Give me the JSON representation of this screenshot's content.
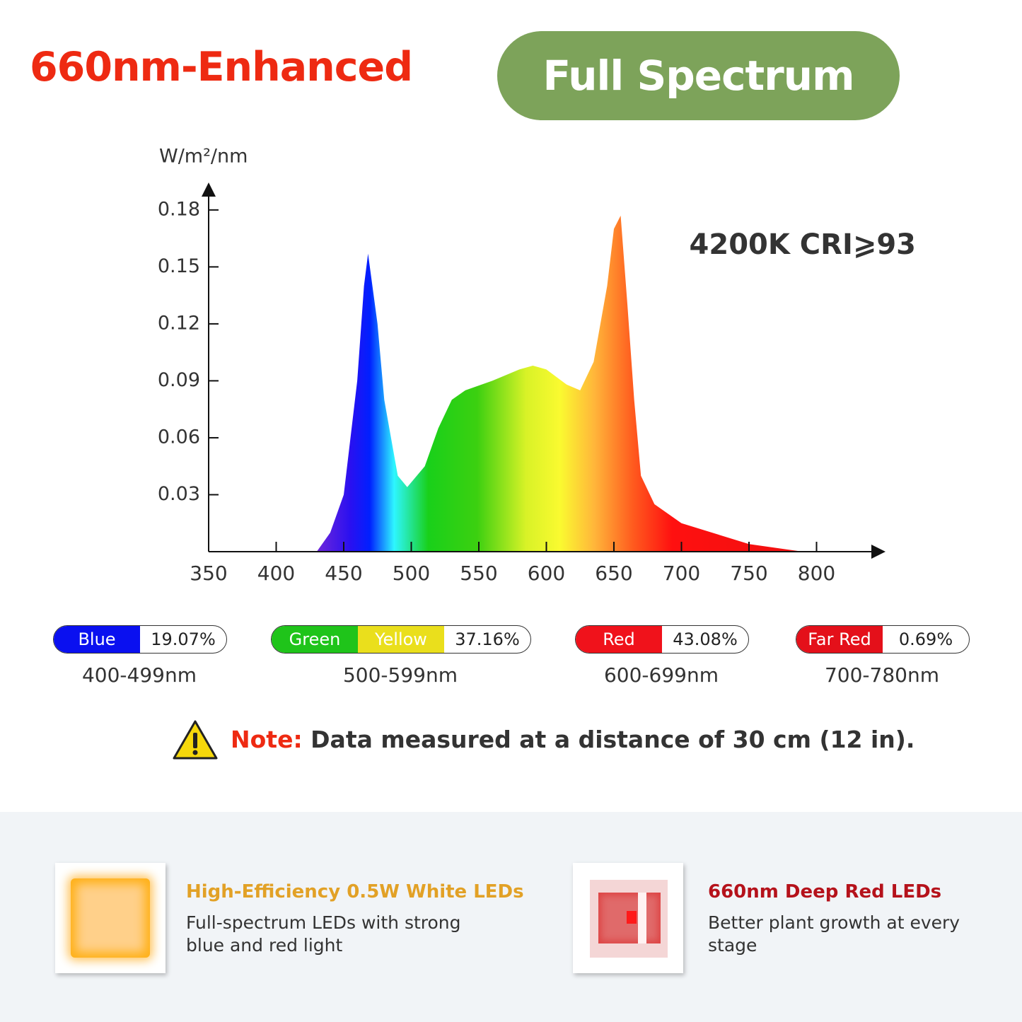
{
  "header": {
    "title": "660nm-Enhanced",
    "badge": "Full Spectrum"
  },
  "chart_data": {
    "type": "area",
    "y_label": "W/m²/nm",
    "annotation": "4200K CRI⩾93",
    "x": [
      430,
      440,
      450,
      460,
      465,
      468,
      475,
      480,
      490,
      497,
      510,
      520,
      530,
      540,
      560,
      580,
      590,
      600,
      615,
      625,
      635,
      645,
      650,
      655,
      660,
      665,
      670,
      680,
      700,
      750,
      780,
      790
    ],
    "values": [
      0,
      0.01,
      0.03,
      0.09,
      0.14,
      0.157,
      0.12,
      0.08,
      0.04,
      0.034,
      0.045,
      0.065,
      0.08,
      0.085,
      0.09,
      0.096,
      0.098,
      0.096,
      0.088,
      0.085,
      0.1,
      0.14,
      0.17,
      0.177,
      0.13,
      0.08,
      0.04,
      0.025,
      0.015,
      0.004,
      0.001,
      0
    ],
    "xlim": [
      350,
      850
    ],
    "xticks": [
      350,
      400,
      450,
      500,
      550,
      600,
      650,
      700,
      750,
      800
    ],
    "ylim": [
      0,
      0.19
    ],
    "yticks": [
      0.03,
      0.06,
      0.09,
      0.12,
      0.15,
      0.18
    ]
  },
  "bands": [
    {
      "labels": [
        "Blue"
      ],
      "colors": [
        "#0a10f0"
      ],
      "share": "19.07%",
      "range": "400-499nm"
    },
    {
      "labels": [
        "Green",
        "Yellow"
      ],
      "colors": [
        "#1fc41a",
        "#eadf1c"
      ],
      "share": "37.16%",
      "range": "500-599nm"
    },
    {
      "labels": [
        "Red"
      ],
      "colors": [
        "#f0121b"
      ],
      "share": "43.08%",
      "range": "600-699nm"
    },
    {
      "labels": [
        "Far Red"
      ],
      "colors": [
        "#e4101a"
      ],
      "share": "0.69%",
      "range": "700-780nm"
    }
  ],
  "note": {
    "label": "Note:",
    "text": "Data measured at a distance of 30 cm (12 in)."
  },
  "features": [
    {
      "title": "High-Efficiency 0.5W White LEDs",
      "description": "Full-spectrum LEDs with strong blue and red light"
    },
    {
      "title": "660nm Deep Red LEDs",
      "description": "Better plant growth at every stage"
    }
  ]
}
